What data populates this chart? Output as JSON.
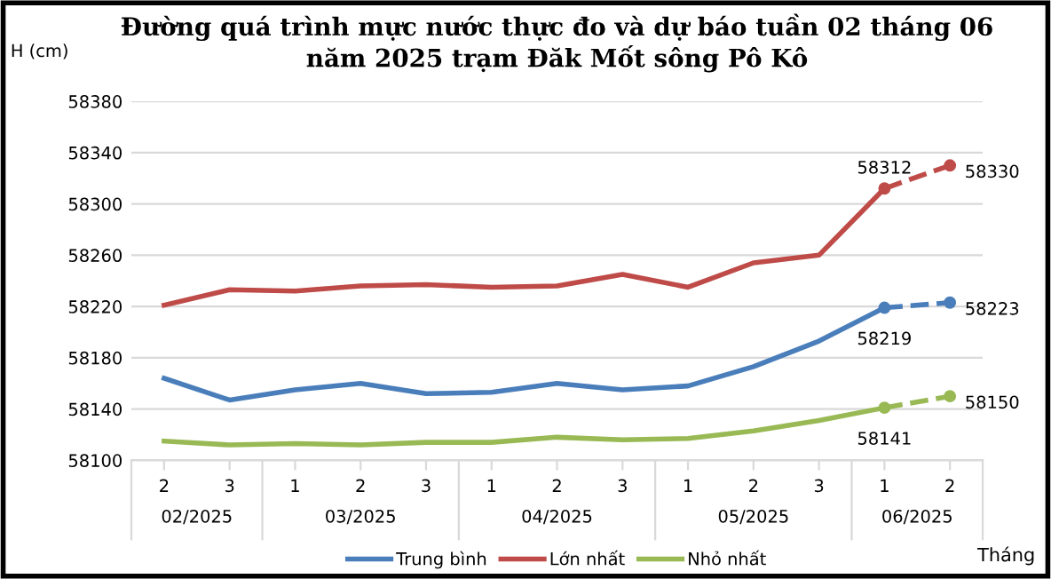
{
  "chart_data": {
    "type": "line",
    "title": "Đường quá trình mực nước thực đo và dự báo tuần 02 tháng 06\nnăm 2025 trạm Đăk Mốt sông Pô Kô",
    "ylabel": "H (cm)",
    "xlabel": "Tháng",
    "categories": [
      "2",
      "3",
      "1",
      "2",
      "3",
      "1",
      "2",
      "3",
      "1",
      "2",
      "3",
      "1",
      "2"
    ],
    "annotations": [
      "02/2025",
      "03/2025",
      "04/2025",
      "05/2025",
      "06/2025"
    ],
    "series": [
      {
        "name": "Trung bình",
        "color": "#4a7ebb",
        "values": [
          58164,
          58147,
          58155,
          58160,
          58152,
          58153,
          58160,
          58155,
          58158,
          58173,
          58193,
          58219,
          null
        ]
      },
      {
        "name": "Lớn nhất",
        "color": "#be4b48",
        "values": [
          58221,
          58233,
          58232,
          58236,
          58237,
          58235,
          58236,
          58245,
          58235,
          58254,
          58260,
          58312,
          null
        ]
      },
      {
        "name": "Nhỏ nhất",
        "color": "#98b954",
        "values": [
          58115,
          58112,
          58113,
          58112,
          58114,
          58114,
          58118,
          58116,
          58117,
          58123,
          58131,
          58141,
          null
        ]
      },
      {
        "color": "#4a7ebb",
        "line_style": "dashed",
        "marker": "circle",
        "values": [
          null,
          null,
          null,
          null,
          null,
          null,
          null,
          null,
          null,
          null,
          null,
          58219,
          58223
        ],
        "value_labels": [
          null,
          null,
          null,
          null,
          null,
          null,
          null,
          null,
          null,
          null,
          null,
          "58219",
          "58223"
        ]
      },
      {
        "color": "#be4b48",
        "line_style": "dashed",
        "marker": "circle",
        "values": [
          null,
          null,
          null,
          null,
          null,
          null,
          null,
          null,
          null,
          null,
          null,
          58312,
          58330
        ],
        "value_labels": [
          null,
          null,
          null,
          null,
          null,
          null,
          null,
          null,
          null,
          null,
          null,
          "58312",
          "58330"
        ]
      },
      {
        "color": "#98b954",
        "line_style": "dashed",
        "marker": "circle",
        "values": [
          null,
          null,
          null,
          null,
          null,
          null,
          null,
          null,
          null,
          null,
          null,
          58141,
          58150
        ],
        "value_labels": [
          null,
          null,
          null,
          null,
          null,
          null,
          null,
          null,
          null,
          null,
          null,
          "58141",
          "58150"
        ]
      }
    ],
    "ylim": [
      58100,
      58380
    ],
    "yticks": [
      58100,
      58140,
      58180,
      58220,
      58260,
      58300,
      58340,
      58380
    ],
    "grid": "y",
    "legend": "bottom",
    "marker": "none",
    "line_style": "solid"
  }
}
